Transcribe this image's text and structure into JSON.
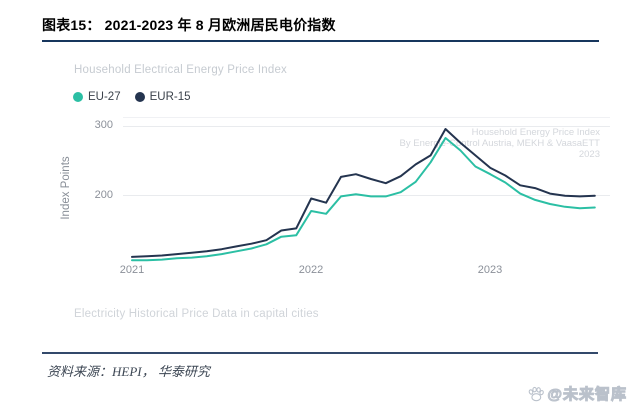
{
  "header": {
    "title": "图表15： 2021-2023 年 8 月欧洲居民电价指数"
  },
  "chart_data": {
    "type": "line",
    "title": "Household Electrical Energy Price Index",
    "caption": "Electricity Historical Price Data in capital cities",
    "ylabel": "Index Points",
    "ylim": [
      100,
      310
    ],
    "grid": "horizontal",
    "legend_position": "top-left",
    "yticks": [
      "300",
      "200"
    ],
    "xticks": [
      "2021",
      "2022",
      "2023"
    ],
    "watermark_lines": [
      "Household Energy Price Index",
      "By Energie-Control Austria, MEKH & VaasaETT",
      "2023"
    ],
    "x": [
      "2021-01",
      "2021-02",
      "2021-03",
      "2021-04",
      "2021-05",
      "2021-06",
      "2021-07",
      "2021-08",
      "2021-09",
      "2021-10",
      "2021-11",
      "2021-12",
      "2022-01",
      "2022-02",
      "2022-03",
      "2022-04",
      "2022-05",
      "2022-06",
      "2022-07",
      "2022-08",
      "2022-09",
      "2022-10",
      "2022-11",
      "2022-12",
      "2023-01",
      "2023-02",
      "2023-03",
      "2023-04",
      "2023-05",
      "2023-06",
      "2023-07",
      "2023-08"
    ],
    "series": [
      {
        "name": "EU-27",
        "color": "#2bbfa4",
        "values": [
          107,
          107,
          108,
          110,
          111,
          113,
          116,
          120,
          124,
          130,
          141,
          143,
          178,
          174,
          199,
          202,
          199,
          199,
          205,
          220,
          248,
          283,
          265,
          242,
          231,
          219,
          203,
          194,
          188,
          184,
          182,
          183
        ]
      },
      {
        "name": "EUR-15",
        "color": "#24344f",
        "values": [
          112,
          113,
          114,
          116,
          118,
          120,
          123,
          127,
          131,
          136,
          150,
          153,
          196,
          190,
          227,
          231,
          224,
          218,
          228,
          245,
          258,
          296,
          276,
          258,
          240,
          229,
          215,
          211,
          203,
          200,
          199,
          200
        ]
      }
    ]
  },
  "footer": {
    "source": "资料来源：HEPI， 华泰研究",
    "watermark": "@未来智库"
  },
  "colors": {
    "title_rule": "#17365d",
    "footer_rule": "#33496b",
    "grid": "#e9ebee",
    "eu27_line": "#2bbfa4",
    "eur15_line": "#24344f"
  }
}
